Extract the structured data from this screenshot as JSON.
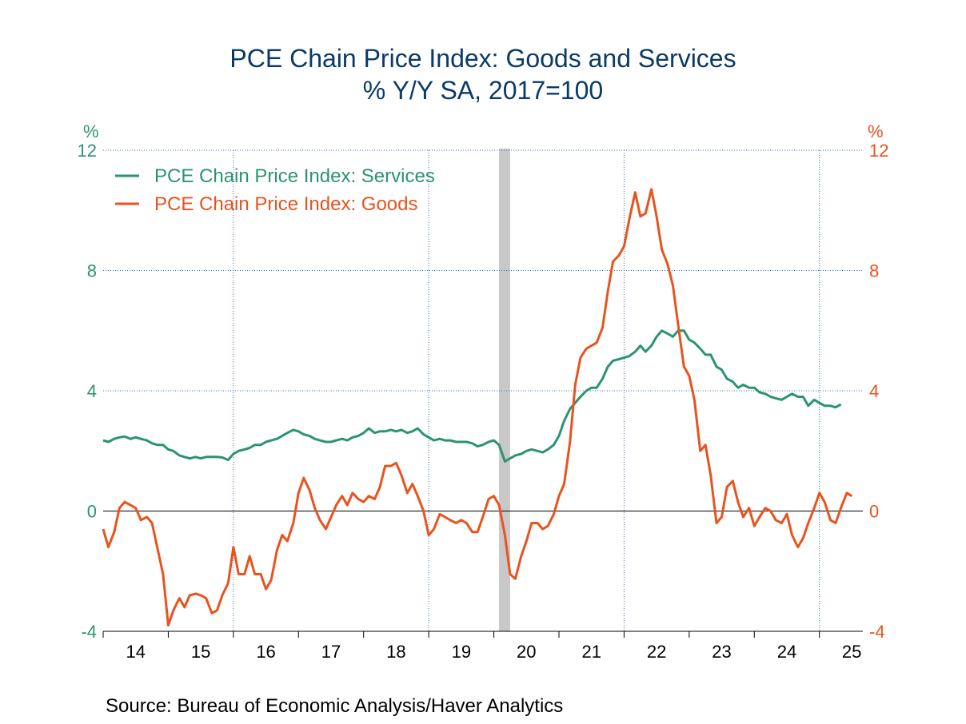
{
  "title": "PCE Chain Price Index: Goods and Services",
  "subtitle": "% Y/Y   SA, 2017=100",
  "source": "Source:  Bureau of Economic Analysis/Haver Analytics",
  "chart_data": {
    "type": "line",
    "left_axis": {
      "unit": "%",
      "ticks": [
        "12",
        "8",
        "4",
        "0",
        "-4"
      ],
      "ylim": [
        -4,
        12
      ],
      "color": "#2a9470"
    },
    "right_axis": {
      "unit": "%",
      "ticks": [
        "12",
        "8",
        "4",
        "0",
        "-4"
      ],
      "ylim": [
        -4,
        12
      ],
      "color": "#e8531e"
    },
    "x_labels": [
      "14",
      "15",
      "16",
      "17",
      "18",
      "19",
      "20",
      "21",
      "22",
      "23",
      "24",
      "25"
    ],
    "x_start": 2014.0,
    "grid": true,
    "legend_position": "top-left",
    "recession_band": [
      2020.08,
      2020.25
    ],
    "series": [
      {
        "name": "PCE Chain Price Index: Services",
        "color": "#2a9470",
        "points": [
          [
            2014.0,
            2.35
          ],
          [
            2014.08,
            2.3
          ],
          [
            2014.17,
            2.4
          ],
          [
            2014.25,
            2.45
          ],
          [
            2014.33,
            2.48
          ],
          [
            2014.42,
            2.4
          ],
          [
            2014.5,
            2.45
          ],
          [
            2014.58,
            2.4
          ],
          [
            2014.67,
            2.35
          ],
          [
            2014.75,
            2.25
          ],
          [
            2014.83,
            2.2
          ],
          [
            2014.92,
            2.2
          ],
          [
            2015.0,
            2.05
          ],
          [
            2015.08,
            2.0
          ],
          [
            2015.17,
            1.85
          ],
          [
            2015.25,
            1.8
          ],
          [
            2015.33,
            1.75
          ],
          [
            2015.42,
            1.8
          ],
          [
            2015.5,
            1.75
          ],
          [
            2015.58,
            1.8
          ],
          [
            2015.67,
            1.8
          ],
          [
            2015.75,
            1.8
          ],
          [
            2015.83,
            1.78
          ],
          [
            2015.92,
            1.7
          ],
          [
            2016.0,
            1.9
          ],
          [
            2016.08,
            2.0
          ],
          [
            2016.17,
            2.05
          ],
          [
            2016.25,
            2.1
          ],
          [
            2016.33,
            2.2
          ],
          [
            2016.42,
            2.2
          ],
          [
            2016.5,
            2.3
          ],
          [
            2016.58,
            2.35
          ],
          [
            2016.67,
            2.4
          ],
          [
            2016.75,
            2.5
          ],
          [
            2016.83,
            2.6
          ],
          [
            2016.92,
            2.7
          ],
          [
            2017.0,
            2.65
          ],
          [
            2017.08,
            2.55
          ],
          [
            2017.17,
            2.5
          ],
          [
            2017.25,
            2.4
          ],
          [
            2017.33,
            2.35
          ],
          [
            2017.42,
            2.3
          ],
          [
            2017.5,
            2.3
          ],
          [
            2017.58,
            2.35
          ],
          [
            2017.67,
            2.4
          ],
          [
            2017.75,
            2.35
          ],
          [
            2017.83,
            2.45
          ],
          [
            2017.92,
            2.5
          ],
          [
            2018.0,
            2.6
          ],
          [
            2018.08,
            2.75
          ],
          [
            2018.17,
            2.6
          ],
          [
            2018.25,
            2.65
          ],
          [
            2018.33,
            2.65
          ],
          [
            2018.42,
            2.7
          ],
          [
            2018.5,
            2.65
          ],
          [
            2018.58,
            2.7
          ],
          [
            2018.67,
            2.6
          ],
          [
            2018.75,
            2.65
          ],
          [
            2018.83,
            2.75
          ],
          [
            2018.92,
            2.55
          ],
          [
            2019.0,
            2.45
          ],
          [
            2019.08,
            2.35
          ],
          [
            2019.17,
            2.4
          ],
          [
            2019.25,
            2.35
          ],
          [
            2019.33,
            2.35
          ],
          [
            2019.42,
            2.3
          ],
          [
            2019.5,
            2.3
          ],
          [
            2019.58,
            2.3
          ],
          [
            2019.67,
            2.25
          ],
          [
            2019.75,
            2.15
          ],
          [
            2019.83,
            2.2
          ],
          [
            2019.92,
            2.3
          ],
          [
            2020.0,
            2.35
          ],
          [
            2020.08,
            2.2
          ],
          [
            2020.17,
            1.65
          ],
          [
            2020.25,
            1.75
          ],
          [
            2020.33,
            1.85
          ],
          [
            2020.42,
            1.9
          ],
          [
            2020.5,
            2.0
          ],
          [
            2020.58,
            2.05
          ],
          [
            2020.67,
            2.0
          ],
          [
            2020.75,
            1.95
          ],
          [
            2020.83,
            2.05
          ],
          [
            2020.92,
            2.2
          ],
          [
            2021.0,
            2.5
          ],
          [
            2021.08,
            3.0
          ],
          [
            2021.17,
            3.4
          ],
          [
            2021.25,
            3.6
          ],
          [
            2021.33,
            3.8
          ],
          [
            2021.42,
            4.0
          ],
          [
            2021.5,
            4.1
          ],
          [
            2021.58,
            4.1
          ],
          [
            2021.67,
            4.4
          ],
          [
            2021.75,
            4.8
          ],
          [
            2021.83,
            5.0
          ],
          [
            2021.92,
            5.05
          ],
          [
            2022.0,
            5.1
          ],
          [
            2022.08,
            5.15
          ],
          [
            2022.17,
            5.3
          ],
          [
            2022.25,
            5.5
          ],
          [
            2022.33,
            5.3
          ],
          [
            2022.42,
            5.5
          ],
          [
            2022.5,
            5.8
          ],
          [
            2022.58,
            6.0
          ],
          [
            2022.67,
            5.9
          ],
          [
            2022.75,
            5.8
          ],
          [
            2022.83,
            6.0
          ],
          [
            2022.92,
            6.0
          ],
          [
            2023.0,
            5.7
          ],
          [
            2023.08,
            5.6
          ],
          [
            2023.17,
            5.4
          ],
          [
            2023.25,
            5.2
          ],
          [
            2023.33,
            5.2
          ],
          [
            2023.42,
            4.8
          ],
          [
            2023.5,
            4.7
          ],
          [
            2023.58,
            4.4
          ],
          [
            2023.67,
            4.3
          ],
          [
            2023.75,
            4.1
          ],
          [
            2023.83,
            4.2
          ],
          [
            2023.92,
            4.1
          ],
          [
            2024.0,
            4.1
          ],
          [
            2024.08,
            3.95
          ],
          [
            2024.17,
            3.9
          ],
          [
            2024.25,
            3.8
          ],
          [
            2024.33,
            3.75
          ],
          [
            2024.42,
            3.7
          ],
          [
            2024.5,
            3.8
          ],
          [
            2024.58,
            3.9
          ],
          [
            2024.67,
            3.8
          ],
          [
            2024.75,
            3.8
          ],
          [
            2024.83,
            3.5
          ],
          [
            2024.92,
            3.7
          ],
          [
            2025.0,
            3.6
          ],
          [
            2025.08,
            3.5
          ],
          [
            2025.17,
            3.5
          ],
          [
            2025.25,
            3.45
          ],
          [
            2025.33,
            3.55
          ]
        ]
      },
      {
        "name": "PCE Chain Price Index: Goods",
        "color": "#e8531e",
        "points": [
          [
            2014.0,
            -0.6
          ],
          [
            2014.08,
            -1.2
          ],
          [
            2014.17,
            -0.7
          ],
          [
            2014.25,
            0.1
          ],
          [
            2014.33,
            0.3
          ],
          [
            2014.42,
            0.2
          ],
          [
            2014.5,
            0.1
          ],
          [
            2014.58,
            -0.3
          ],
          [
            2014.67,
            -0.2
          ],
          [
            2014.75,
            -0.4
          ],
          [
            2014.83,
            -1.2
          ],
          [
            2014.92,
            -2.1
          ],
          [
            2015.0,
            -3.8
          ],
          [
            2015.08,
            -3.3
          ],
          [
            2015.17,
            -2.9
          ],
          [
            2015.25,
            -3.2
          ],
          [
            2015.33,
            -2.8
          ],
          [
            2015.42,
            -2.75
          ],
          [
            2015.5,
            -2.8
          ],
          [
            2015.58,
            -2.9
          ],
          [
            2015.67,
            -3.4
          ],
          [
            2015.75,
            -3.3
          ],
          [
            2015.83,
            -2.8
          ],
          [
            2015.92,
            -2.4
          ],
          [
            2016.0,
            -1.2
          ],
          [
            2016.08,
            -2.1
          ],
          [
            2016.17,
            -2.1
          ],
          [
            2016.25,
            -1.5
          ],
          [
            2016.33,
            -2.1
          ],
          [
            2016.42,
            -2.1
          ],
          [
            2016.5,
            -2.6
          ],
          [
            2016.58,
            -2.3
          ],
          [
            2016.67,
            -1.3
          ],
          [
            2016.75,
            -0.8
          ],
          [
            2016.83,
            -1.0
          ],
          [
            2016.92,
            -0.4
          ],
          [
            2017.0,
            0.6
          ],
          [
            2017.08,
            1.1
          ],
          [
            2017.17,
            0.7
          ],
          [
            2017.25,
            0.1
          ],
          [
            2017.33,
            -0.3
          ],
          [
            2017.42,
            -0.6
          ],
          [
            2017.5,
            -0.2
          ],
          [
            2017.58,
            0.2
          ],
          [
            2017.67,
            0.5
          ],
          [
            2017.75,
            0.2
          ],
          [
            2017.83,
            0.6
          ],
          [
            2017.92,
            0.4
          ],
          [
            2018.0,
            0.3
          ],
          [
            2018.08,
            0.5
          ],
          [
            2018.17,
            0.4
          ],
          [
            2018.25,
            0.8
          ],
          [
            2018.33,
            1.5
          ],
          [
            2018.42,
            1.5
          ],
          [
            2018.5,
            1.6
          ],
          [
            2018.58,
            1.2
          ],
          [
            2018.67,
            0.6
          ],
          [
            2018.75,
            0.9
          ],
          [
            2018.83,
            0.5
          ],
          [
            2018.92,
            0.0
          ],
          [
            2019.0,
            -0.8
          ],
          [
            2019.08,
            -0.6
          ],
          [
            2019.17,
            -0.1
          ],
          [
            2019.25,
            -0.2
          ],
          [
            2019.33,
            -0.3
          ],
          [
            2019.42,
            -0.4
          ],
          [
            2019.5,
            -0.3
          ],
          [
            2019.58,
            -0.4
          ],
          [
            2019.67,
            -0.7
          ],
          [
            2019.75,
            -0.7
          ],
          [
            2019.83,
            -0.2
          ],
          [
            2019.92,
            0.4
          ],
          [
            2020.0,
            0.5
          ],
          [
            2020.08,
            0.2
          ],
          [
            2020.17,
            -0.8
          ],
          [
            2020.25,
            -2.1
          ],
          [
            2020.33,
            -2.25
          ],
          [
            2020.42,
            -1.5
          ],
          [
            2020.5,
            -1.0
          ],
          [
            2020.58,
            -0.4
          ],
          [
            2020.67,
            -0.4
          ],
          [
            2020.75,
            -0.6
          ],
          [
            2020.83,
            -0.5
          ],
          [
            2020.92,
            -0.1
          ],
          [
            2021.0,
            0.5
          ],
          [
            2021.08,
            0.9
          ],
          [
            2021.17,
            2.3
          ],
          [
            2021.25,
            4.2
          ],
          [
            2021.33,
            5.1
          ],
          [
            2021.42,
            5.4
          ],
          [
            2021.5,
            5.5
          ],
          [
            2021.58,
            5.6
          ],
          [
            2021.67,
            6.1
          ],
          [
            2021.75,
            7.3
          ],
          [
            2021.83,
            8.3
          ],
          [
            2021.92,
            8.5
          ],
          [
            2022.0,
            8.8
          ],
          [
            2022.08,
            9.7
          ],
          [
            2022.17,
            10.6
          ],
          [
            2022.25,
            9.8
          ],
          [
            2022.33,
            9.9
          ],
          [
            2022.42,
            10.7
          ],
          [
            2022.5,
            9.8
          ],
          [
            2022.58,
            8.7
          ],
          [
            2022.67,
            8.2
          ],
          [
            2022.75,
            7.5
          ],
          [
            2022.83,
            6.2
          ],
          [
            2022.92,
            4.8
          ],
          [
            2023.0,
            4.5
          ],
          [
            2023.08,
            3.7
          ],
          [
            2023.17,
            2.0
          ],
          [
            2023.25,
            2.2
          ],
          [
            2023.33,
            1.2
          ],
          [
            2023.42,
            -0.4
          ],
          [
            2023.5,
            -0.2
          ],
          [
            2023.58,
            0.8
          ],
          [
            2023.67,
            1.0
          ],
          [
            2023.75,
            0.3
          ],
          [
            2023.83,
            -0.2
          ],
          [
            2023.92,
            0.1
          ],
          [
            2024.0,
            -0.5
          ],
          [
            2024.08,
            -0.2
          ],
          [
            2024.17,
            0.1
          ],
          [
            2024.25,
            0.0
          ],
          [
            2024.33,
            -0.3
          ],
          [
            2024.42,
            -0.4
          ],
          [
            2024.5,
            -0.1
          ],
          [
            2024.58,
            -0.8
          ],
          [
            2024.67,
            -1.2
          ],
          [
            2024.75,
            -0.9
          ],
          [
            2024.83,
            -0.4
          ],
          [
            2024.92,
            0.1
          ],
          [
            2025.0,
            0.6
          ],
          [
            2025.08,
            0.3
          ],
          [
            2025.17,
            -0.3
          ],
          [
            2025.25,
            -0.4
          ],
          [
            2025.33,
            0.1
          ],
          [
            2025.42,
            0.6
          ],
          [
            2025.5,
            0.5
          ]
        ]
      }
    ]
  }
}
